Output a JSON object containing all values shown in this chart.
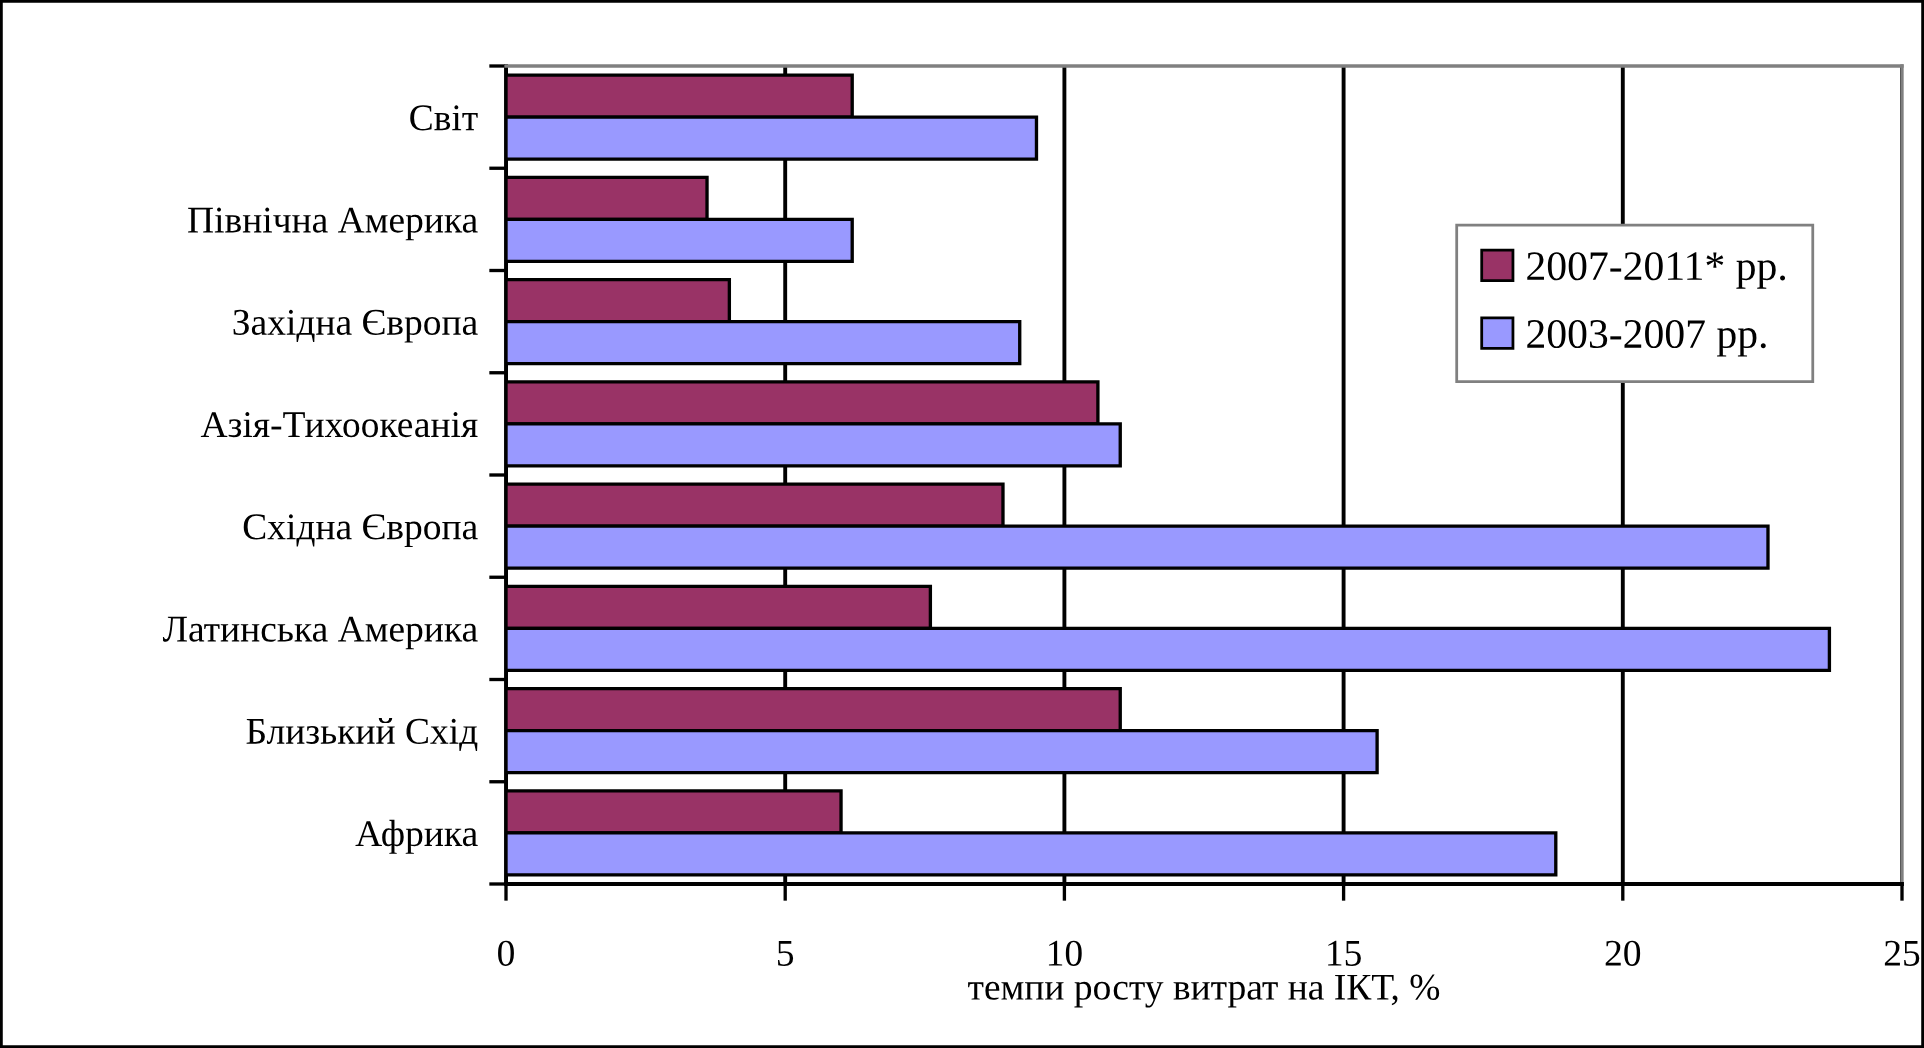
{
  "chart_data": {
    "type": "bar",
    "orientation": "horizontal",
    "categories": [
      "Світ",
      "Північна Америка",
      "Західна Європа",
      "Азія-Тихоокеанія",
      "Східна Європа",
      "Латинська Америка",
      "Близький Схід",
      "Африка"
    ],
    "series": [
      {
        "name": "2007-2011* рр.",
        "color": "#993366",
        "values": [
          6.2,
          3.6,
          4.0,
          10.6,
          8.9,
          7.6,
          11.0,
          6.0
        ]
      },
      {
        "name": "2003-2007 рр.",
        "color": "#9999ff",
        "values": [
          9.5,
          6.2,
          9.2,
          11.0,
          22.6,
          23.7,
          15.6,
          18.8
        ]
      }
    ],
    "xlabel": "темпи росту витрат на ІКТ, %",
    "xlim": [
      0,
      25
    ],
    "xticks": [
      0,
      5,
      10,
      15,
      20,
      25
    ],
    "grid": "x",
    "legend": "top right"
  }
}
